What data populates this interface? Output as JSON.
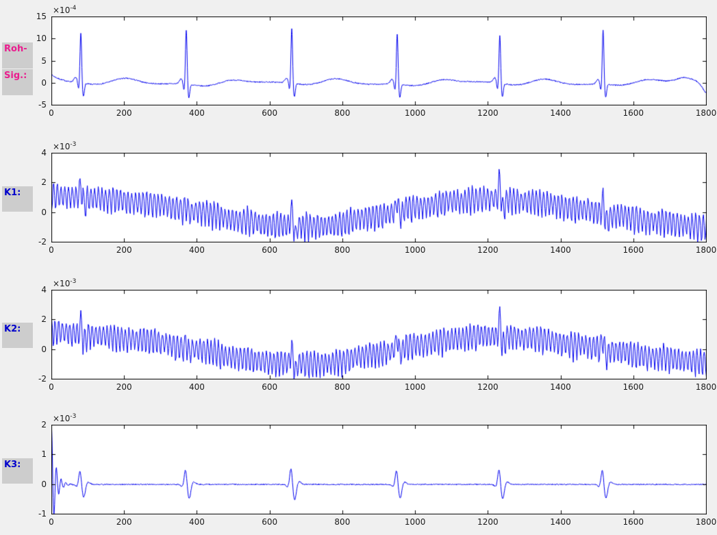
{
  "figure": {
    "background": "#f0f0f0",
    "axes_background": "#ffffff",
    "axes_line_color": "#000000",
    "tick_label_color": "#1a1a1a",
    "label_box_background": "#cdcdcd"
  },
  "labels": {
    "box_bg": "#cdcdcd",
    "roh": {
      "text": "Roh-",
      "color": "#ea1c8e"
    },
    "sig": {
      "text": "Sig.:",
      "color": "#ea1c8e"
    },
    "k1": {
      "text": "K1:",
      "color": "#0000cc"
    },
    "k2": {
      "text": "K2:",
      "color": "#0000cc"
    },
    "k3": {
      "text": "K3:",
      "color": "#0000cc"
    }
  },
  "chart_data": [
    {
      "type": "line",
      "name": "roh-sig",
      "description": "Raw ECG signal: baseline near 0 with P and T waves, sharp R-peaks at regular intervals, units 1e-4",
      "exponent_label": {
        "base": "×10",
        "exp": "-4"
      },
      "unit_exponent": -4,
      "xlim": [
        0,
        1800
      ],
      "ylim": [
        -5,
        15
      ],
      "xticks": [
        0,
        200,
        400,
        600,
        800,
        1000,
        1200,
        1400,
        1600,
        1800
      ],
      "yticks": [
        -5,
        0,
        5,
        10,
        15
      ],
      "xlabel": "",
      "ylabel": "",
      "grid": false,
      "line_color": "#0000f0",
      "series": {
        "kind": "ecg",
        "seed": 7,
        "step": 1,
        "noise": 0.13,
        "beats": [
          80,
          370,
          660,
          950,
          1232,
          1516
        ],
        "r_heights": [
          11.4,
          12.4,
          12.4,
          11.5,
          11.0,
          12.5
        ],
        "p_amp": 1.1,
        "q_amp": -1.8,
        "s_amp": -3.0,
        "st_amp": -0.5,
        "t_amp": 0.85,
        "start_amp": 1.75,
        "start_tau": 28,
        "end_bump": {
          "x": 1740,
          "amp": 0.9,
          "sigma": 22
        },
        "end_drop": {
          "x": 1802,
          "amp": -2.4,
          "sigma": 12
        }
      }
    },
    {
      "type": "line",
      "name": "k1",
      "description": "Channel K1: dense oscillation (~period 10) riding on slow sinusoidal baseline drift, spikes at heartbeat positions, units 1e-3",
      "exponent_label": {
        "base": "×10",
        "exp": "-3"
      },
      "unit_exponent": -3,
      "xlim": [
        0,
        1800
      ],
      "ylim": [
        -2,
        4
      ],
      "xticks": [
        0,
        200,
        400,
        600,
        800,
        1000,
        1200,
        1400,
        1600,
        1800
      ],
      "yticks": [
        -2,
        0,
        2,
        4
      ],
      "xlabel": "",
      "ylabel": "",
      "grid": false,
      "line_color": "#0000f0",
      "series": {
        "kind": "osc",
        "seed": 11,
        "step": 2,
        "noise": 0.06,
        "period": 10.2,
        "amp": 0.8,
        "baseline": [
          [
            0,
            1.15
          ],
          [
            120,
            0.95
          ],
          [
            250,
            0.68
          ],
          [
            400,
            0.1
          ],
          [
            520,
            -0.55
          ],
          [
            620,
            -0.85
          ],
          [
            750,
            -0.9
          ],
          [
            880,
            -0.3
          ],
          [
            1000,
            0.35
          ],
          [
            1100,
            0.75
          ],
          [
            1200,
            0.95
          ],
          [
            1320,
            0.75
          ],
          [
            1450,
            0.25
          ],
          [
            1550,
            -0.2
          ],
          [
            1650,
            -0.6
          ],
          [
            1800,
            -0.95
          ]
        ],
        "beats": [
          80,
          370,
          660,
          950,
          1232,
          1516
        ],
        "spike_heights": [
          0.85,
          0.4,
          1.15,
          0.85,
          1.35,
          1.0
        ]
      }
    },
    {
      "type": "line",
      "name": "k2",
      "description": "Channel K2: nearly identical to K1 - dense oscillation with slow baseline drift and heartbeat spikes, units 1e-3",
      "exponent_label": {
        "base": "×10",
        "exp": "-3"
      },
      "unit_exponent": -3,
      "xlim": [
        0,
        1800
      ],
      "ylim": [
        -2,
        4
      ],
      "xticks": [
        0,
        200,
        400,
        600,
        800,
        1000,
        1200,
        1400,
        1600,
        1800
      ],
      "yticks": [
        -2,
        0,
        2,
        4
      ],
      "xlabel": "",
      "ylabel": "",
      "grid": false,
      "line_color": "#0000f0",
      "series": {
        "kind": "osc",
        "seed": 23,
        "step": 2,
        "noise": 0.06,
        "period": 10.2,
        "amp": 0.8,
        "baseline": [
          [
            0,
            1.2
          ],
          [
            120,
            0.95
          ],
          [
            250,
            0.65
          ],
          [
            400,
            0.0
          ],
          [
            520,
            -0.6
          ],
          [
            620,
            -0.9
          ],
          [
            750,
            -0.95
          ],
          [
            880,
            -0.35
          ],
          [
            1000,
            0.3
          ],
          [
            1100,
            0.7
          ],
          [
            1200,
            0.95
          ],
          [
            1320,
            0.75
          ],
          [
            1450,
            0.3
          ],
          [
            1550,
            -0.1
          ],
          [
            1650,
            -0.5
          ],
          [
            1800,
            -0.82
          ]
        ],
        "beats": [
          80,
          370,
          660,
          950,
          1232,
          1516
        ],
        "spike_heights": [
          0.8,
          0.45,
          1.1,
          0.8,
          1.3,
          0.95
        ]
      }
    },
    {
      "type": "line",
      "name": "k3",
      "description": "Channel K3: flat baseline with decaying oscillatory transient at x=0 (peak 1.85e-3) and biphasic wavelets (+0.5/-0.5e-3) at heartbeat positions, units 1e-3",
      "exponent_label": {
        "base": "×10",
        "exp": "-3"
      },
      "unit_exponent": -3,
      "xlim": [
        0,
        1800
      ],
      "ylim": [
        -1,
        2
      ],
      "xticks": [
        0,
        200,
        400,
        600,
        800,
        1000,
        1200,
        1400,
        1600,
        1800
      ],
      "yticks": [
        -1,
        0,
        1,
        2
      ],
      "xlabel": "",
      "ylabel": "",
      "grid": false,
      "line_color": "#0000f0",
      "series": {
        "kind": "wavelet",
        "seed": 5,
        "step": 1,
        "noise": 0.018,
        "start_amp": 1.85,
        "start_tau": 11,
        "start_period": 13,
        "beats": [
          80,
          370,
          660,
          950,
          1232,
          1516
        ],
        "spike_heights": [
          0.47,
          0.52,
          0.57,
          0.5,
          0.53,
          0.5
        ]
      }
    }
  ]
}
